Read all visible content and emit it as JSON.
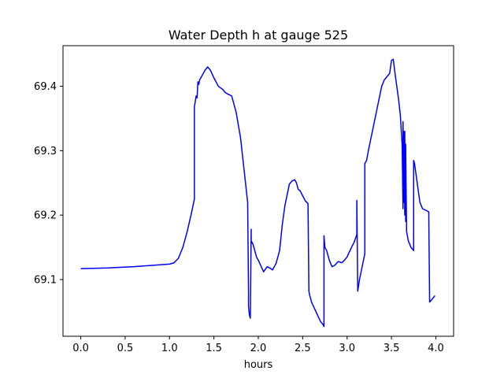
{
  "chart_data": {
    "type": "line",
    "title": "Water Depth h at gauge 525",
    "xlabel": "hours",
    "ylabel": "",
    "xlim": [
      -0.2,
      4.2
    ],
    "ylim": [
      69.012,
      69.463
    ],
    "x_ticks": [
      0.0,
      0.5,
      1.0,
      1.5,
      2.0,
      2.5,
      3.0,
      3.5,
      4.0
    ],
    "x_tick_labels": [
      "0.0",
      "0.5",
      "1.0",
      "1.5",
      "2.0",
      "2.5",
      "3.0",
      "3.5",
      "4.0"
    ],
    "y_ticks": [
      69.1,
      69.2,
      69.3,
      69.4
    ],
    "y_tick_labels": [
      "69.1",
      "69.2",
      "69.3",
      "69.4"
    ],
    "grid": false,
    "legend": "none",
    "series": [
      {
        "color": "#0000ff",
        "x": [
          0.0,
          0.3,
          0.6,
          0.8,
          1.0,
          1.05,
          1.1,
          1.15,
          1.2,
          1.25,
          1.28,
          1.28,
          1.3,
          1.31,
          1.32,
          1.33,
          1.34,
          1.36,
          1.38,
          1.4,
          1.43,
          1.46,
          1.5,
          1.55,
          1.6,
          1.63,
          1.67,
          1.7,
          1.75,
          1.8,
          1.84,
          1.88,
          1.89,
          1.89,
          1.9,
          1.91,
          1.92,
          1.92,
          1.94,
          1.96,
          1.98,
          2.0,
          2.04,
          2.06,
          2.08,
          2.1,
          2.13,
          2.16,
          2.2,
          2.24,
          2.27,
          2.3,
          2.33,
          2.35,
          2.38,
          2.41,
          2.43,
          2.45,
          2.47,
          2.5,
          2.53,
          2.56,
          2.57,
          2.58,
          2.6,
          2.65,
          2.7,
          2.73,
          2.74,
          2.74,
          2.75,
          2.77,
          2.8,
          2.83,
          2.86,
          2.9,
          2.94,
          2.97,
          3.0,
          3.05,
          3.08,
          3.11,
          3.11,
          3.12,
          3.14,
          3.17,
          3.2,
          3.2,
          3.22,
          3.24,
          3.27,
          3.3,
          3.33,
          3.36,
          3.39,
          3.42,
          3.45,
          3.48,
          3.5,
          3.52,
          3.54,
          3.56,
          3.58,
          3.6,
          3.62,
          3.63,
          3.63,
          3.64,
          3.64,
          3.65,
          3.65,
          3.66,
          3.66,
          3.67,
          3.67,
          3.69,
          3.72,
          3.75,
          3.75,
          3.76,
          3.78,
          3.8,
          3.82,
          3.85,
          3.88,
          3.92,
          3.93,
          3.96,
          3.99
        ],
        "y": [
          69.117,
          69.118,
          69.12,
          69.122,
          69.124,
          69.126,
          69.133,
          69.15,
          69.175,
          69.205,
          69.225,
          69.368,
          69.385,
          69.382,
          69.407,
          69.403,
          69.41,
          69.415,
          69.42,
          69.425,
          69.43,
          69.425,
          69.413,
          69.4,
          69.395,
          69.39,
          69.387,
          69.385,
          69.36,
          69.32,
          69.27,
          69.22,
          69.08,
          69.058,
          69.045,
          69.04,
          69.178,
          69.16,
          69.155,
          69.145,
          69.135,
          69.13,
          69.118,
          69.112,
          69.116,
          69.12,
          69.118,
          69.115,
          69.125,
          69.145,
          69.185,
          69.215,
          69.235,
          69.248,
          69.253,
          69.255,
          69.25,
          69.24,
          69.238,
          69.23,
          69.222,
          69.218,
          69.082,
          69.075,
          69.065,
          69.05,
          69.035,
          69.03,
          69.027,
          69.168,
          69.15,
          69.145,
          69.13,
          69.12,
          69.122,
          69.128,
          69.126,
          69.13,
          69.135,
          69.15,
          69.158,
          69.17,
          69.223,
          69.082,
          69.1,
          69.12,
          69.14,
          69.28,
          69.285,
          69.3,
          69.32,
          69.34,
          69.36,
          69.38,
          69.4,
          69.41,
          69.415,
          69.42,
          69.44,
          69.442,
          69.42,
          69.4,
          69.38,
          69.355,
          69.31,
          69.21,
          69.345,
          69.22,
          69.33,
          69.2,
          69.33,
          69.19,
          69.31,
          69.18,
          69.175,
          69.16,
          69.15,
          69.145,
          69.285,
          69.28,
          69.26,
          69.24,
          69.22,
          69.21,
          69.208,
          69.205,
          69.065,
          69.07,
          69.075
        ]
      }
    ]
  }
}
